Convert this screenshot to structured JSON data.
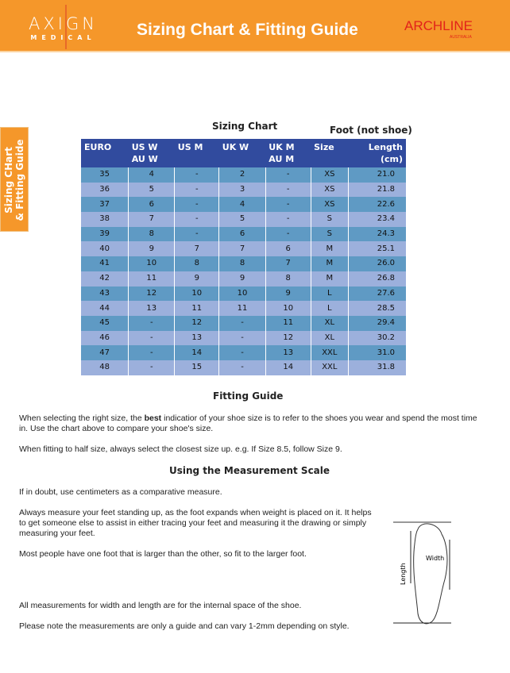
{
  "header": {
    "logo_main": "AXIGN",
    "logo_sub": "MEDICAL",
    "title": "Sizing Chart & Fitting Guide",
    "brand": "ARCHLINE",
    "brand_sub": "AUSTRALIA",
    "colors": {
      "orange": "#f5972a",
      "header_blue": "#314b9e",
      "row_a": "#5f9ac4",
      "row_b": "#9cb0dc"
    }
  },
  "side_tab": {
    "line1": "Sizing CHart",
    "line2": "& Fitting Guide"
  },
  "chart": {
    "title": "Sizing Chart",
    "note": "Foot (not shoe)",
    "headers": [
      [
        "EURO",
        ""
      ],
      [
        "US W",
        "AU W"
      ],
      [
        "US M",
        ""
      ],
      [
        "UK W",
        ""
      ],
      [
        "UK M",
        "AU M"
      ],
      [
        "Size",
        ""
      ],
      [
        "Length",
        "(cm)"
      ]
    ],
    "rows": [
      [
        "35",
        "4",
        "-",
        "2",
        "-",
        "XS",
        "21.0"
      ],
      [
        "36",
        "5",
        "-",
        "3",
        "-",
        "XS",
        "21.8"
      ],
      [
        "37",
        "6",
        "-",
        "4",
        "-",
        "XS",
        "22.6"
      ],
      [
        "38",
        "7",
        "-",
        "5",
        "-",
        "S",
        "23.4"
      ],
      [
        "39",
        "8",
        "-",
        "6",
        "-",
        "S",
        "24.3"
      ],
      [
        "40",
        "9",
        "7",
        "7",
        "6",
        "M",
        "25.1"
      ],
      [
        "41",
        "10",
        "8",
        "8",
        "7",
        "M",
        "26.0"
      ],
      [
        "42",
        "11",
        "9",
        "9",
        "8",
        "M",
        "26.8"
      ],
      [
        "43",
        "12",
        "10",
        "10",
        "9",
        "L",
        "27.6"
      ],
      [
        "44",
        "13",
        "11",
        "11",
        "10",
        "L",
        "28.5"
      ],
      [
        "45",
        "-",
        "12",
        "-",
        "11",
        "XL",
        "29.4"
      ],
      [
        "46",
        "-",
        "13",
        "-",
        "12",
        "XL",
        "30.2"
      ],
      [
        "47",
        "-",
        "14",
        "-",
        "13",
        "XXL",
        "31.0"
      ],
      [
        "48",
        "-",
        "15",
        "-",
        "14",
        "XXL",
        "31.8"
      ]
    ]
  },
  "fitting": {
    "title": "Fitting Guide",
    "p1_a": "When selecting the right size, the ",
    "p1_b": "best",
    "p1_c": " indicatior of your shoe size is to refer to the shoes you wear and spend the most time in. Use the chart above to compare your shoe's size.",
    "p2": "When fitting to half size, always select the closest size up. e.g. If Size 8.5, follow Size 9."
  },
  "measure": {
    "title": "Using the Measurement Scale",
    "p1": "If in doubt, use centimeters as a comparative measure.",
    "p2": "Always measure your feet standing up, as the foot expands when weight is placed on it. It helps to get someone else to assist in either tracing your feet and measuring it the drawing or simply measuring your feet.",
    "p3": "Most people have one foot that is larger than the other, so fit to the larger foot.",
    "p4": "All measurements for width and length are for the internal space of the shoe.",
    "p5": "Please note the measurements are only a guide and can vary 1-2mm depending on style.",
    "diagram_width": "Width",
    "diagram_length": "Length"
  }
}
